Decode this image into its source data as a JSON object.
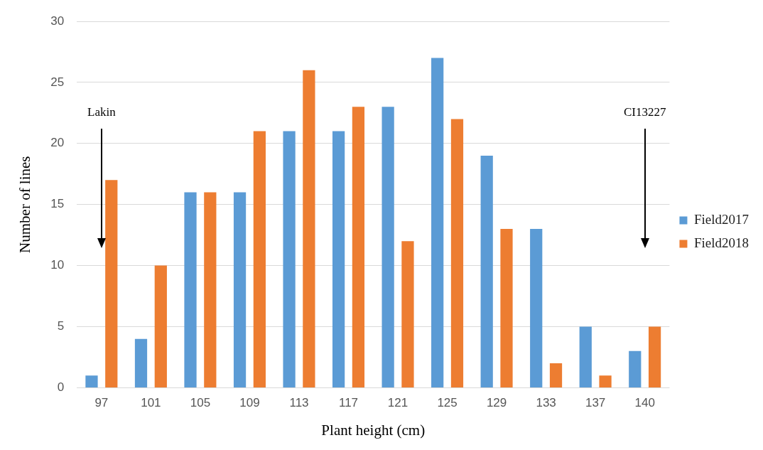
{
  "chart_data": {
    "type": "bar",
    "xlabel": "Plant height (cm)",
    "ylabel": "Number of lines",
    "categories": [
      "97",
      "101",
      "105",
      "109",
      "113",
      "117",
      "121",
      "125",
      "129",
      "133",
      "137",
      "140"
    ],
    "series": [
      {
        "name": "Field2017",
        "color": "#5b9bd5",
        "values": [
          1,
          4,
          16,
          16,
          21,
          21,
          23,
          27,
          19,
          13,
          5,
          3
        ]
      },
      {
        "name": "Field2018",
        "color": "#ed7d31",
        "values": [
          17,
          10,
          16,
          21,
          26,
          23,
          12,
          22,
          13,
          2,
          1,
          5
        ]
      }
    ],
    "ylim": [
      0,
      30
    ],
    "yticks": [
      0,
      5,
      10,
      15,
      20,
      25,
      30
    ],
    "grid": "y",
    "legend": "right",
    "annotations": [
      "Lakin",
      "CI13227"
    ]
  }
}
